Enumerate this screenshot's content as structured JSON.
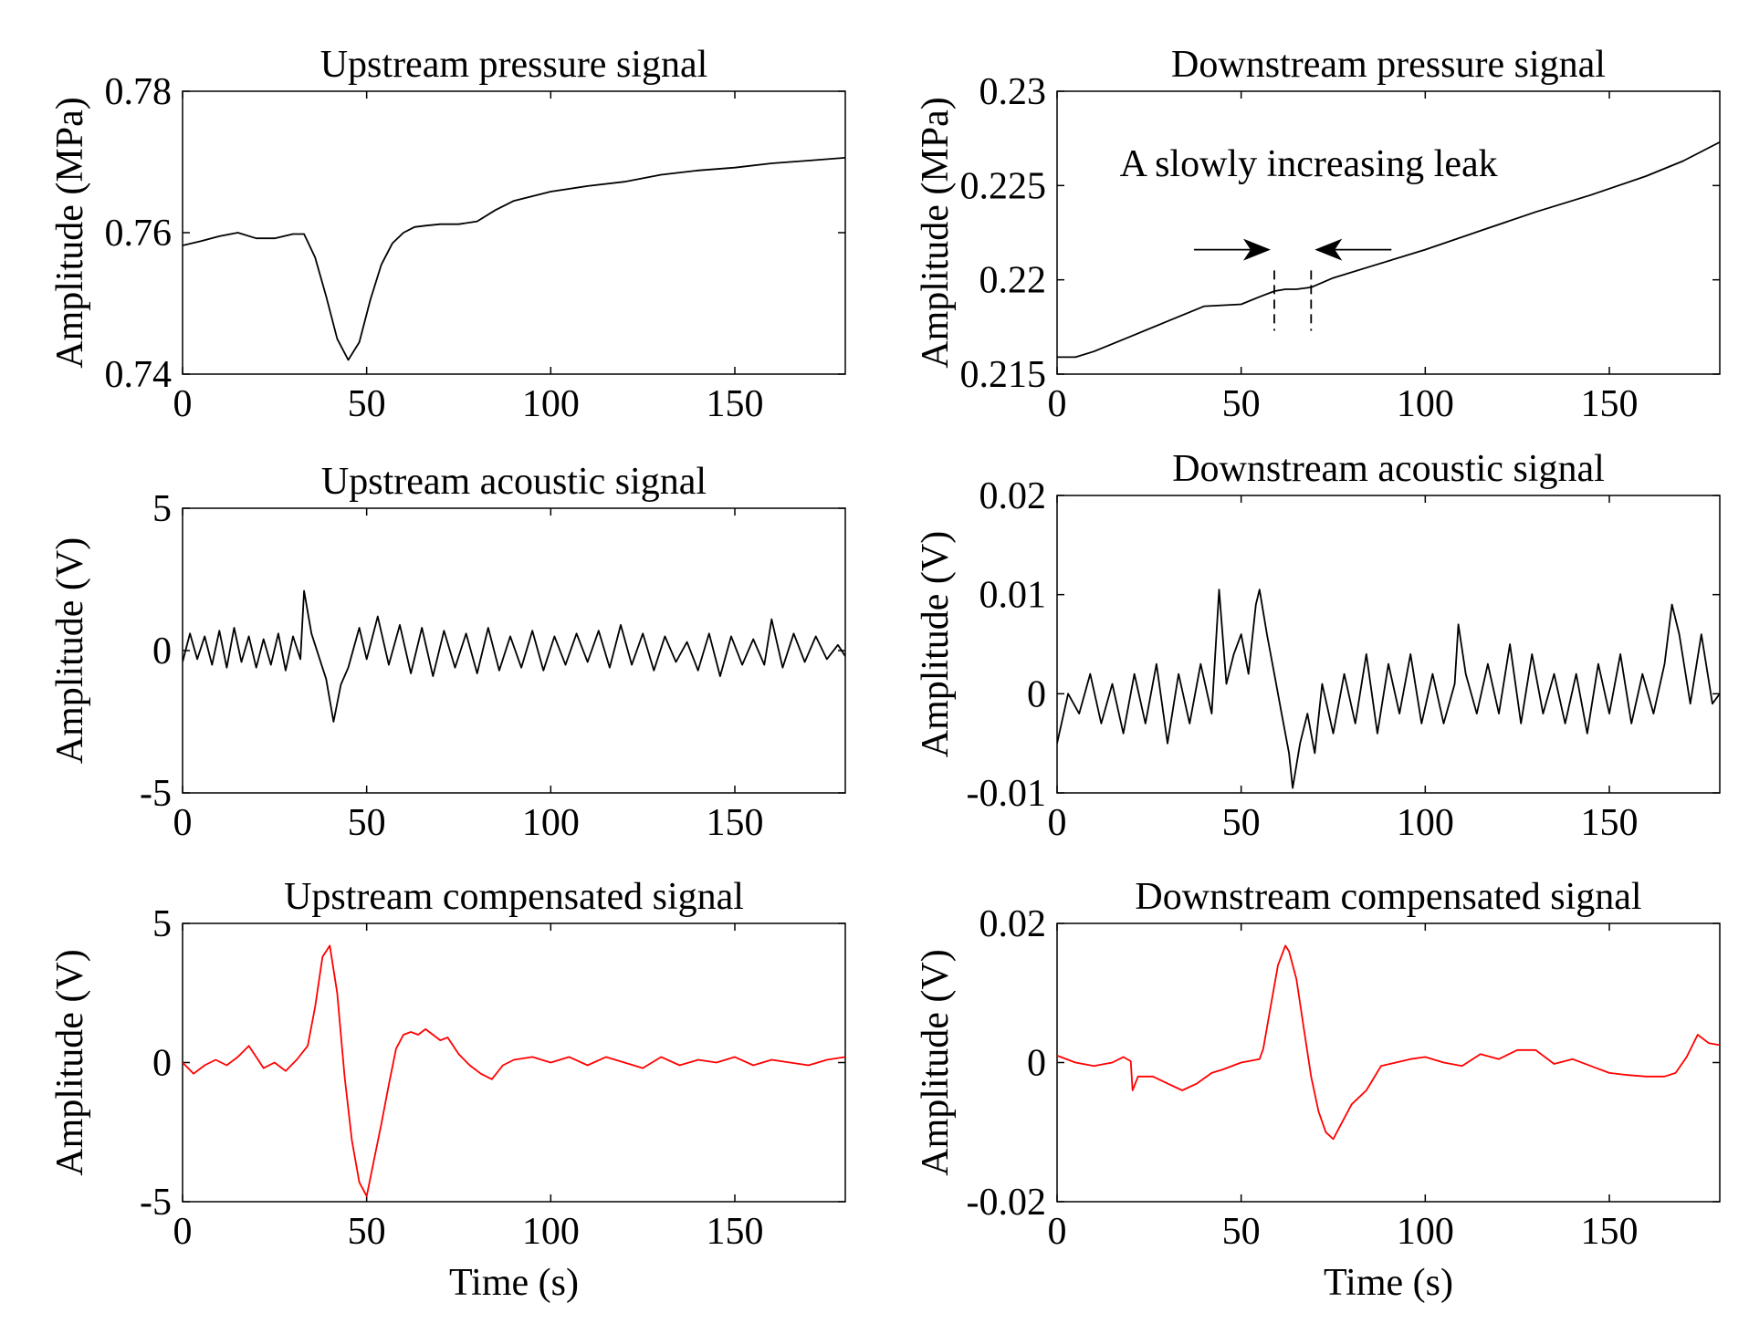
{
  "chart_data": [
    {
      "type": "line",
      "title": "Upstream pressure signal",
      "xlabel": "",
      "ylabel": "Amplitude (MPa)",
      "xlim": [
        0,
        180
      ],
      "ylim": [
        0.74,
        0.78
      ],
      "xticks": [
        0,
        50,
        100,
        150
      ],
      "yticks": [
        0.74,
        0.76,
        0.78
      ],
      "ytick_labels": [
        "0.74",
        "0.76",
        "0.78"
      ],
      "xtick_labels": [
        "0",
        "50",
        "100",
        "150"
      ],
      "color": "#000000",
      "x": [
        0,
        5,
        10,
        15,
        20,
        25,
        30,
        33,
        36,
        39,
        42,
        45,
        48,
        51,
        54,
        57,
        60,
        63,
        66,
        70,
        75,
        80,
        85,
        90,
        100,
        110,
        120,
        130,
        140,
        150,
        160,
        170,
        180
      ],
      "y": [
        0.7582,
        0.7588,
        0.7595,
        0.76,
        0.7592,
        0.7592,
        0.7598,
        0.7598,
        0.7565,
        0.751,
        0.745,
        0.742,
        0.7445,
        0.7505,
        0.7555,
        0.7585,
        0.76,
        0.7608,
        0.761,
        0.7612,
        0.7612,
        0.7616,
        0.7632,
        0.7645,
        0.7658,
        0.7666,
        0.7672,
        0.7682,
        0.7688,
        0.7692,
        0.7698,
        0.7702,
        0.7706
      ]
    },
    {
      "type": "line",
      "title": "Downstream pressure signal",
      "xlabel": "",
      "ylabel": "Amplitude (MPa)",
      "xlim": [
        0,
        180
      ],
      "ylim": [
        0.215,
        0.23
      ],
      "xticks": [
        0,
        50,
        100,
        150
      ],
      "yticks": [
        0.215,
        0.22,
        0.225,
        0.23
      ],
      "ytick_labels": [
        "0.215",
        "0.22",
        "0.225",
        "0.23"
      ],
      "xtick_labels": [
        "0",
        "50",
        "100",
        "150"
      ],
      "color": "#000000",
      "annotation": "A slowly increasing leak",
      "leak_bounds_x": [
        59,
        69
      ],
      "x": [
        0,
        5,
        10,
        20,
        30,
        40,
        50,
        55,
        59,
        62,
        65,
        69,
        75,
        85,
        100,
        115,
        130,
        145,
        160,
        170,
        180
      ],
      "y": [
        0.2159,
        0.2159,
        0.2162,
        0.217,
        0.2178,
        0.2186,
        0.2187,
        0.2191,
        0.2194,
        0.2195,
        0.2195,
        0.2196,
        0.2201,
        0.2207,
        0.2216,
        0.2226,
        0.2236,
        0.2245,
        0.2255,
        0.2263,
        0.2273
      ]
    },
    {
      "type": "line",
      "title": "Upstream acoustic signal",
      "xlabel": "",
      "ylabel": "Amplitude (V)",
      "xlim": [
        0,
        180
      ],
      "ylim": [
        -5,
        5
      ],
      "xticks": [
        0,
        50,
        100,
        150
      ],
      "yticks": [
        -5,
        0,
        5
      ],
      "ytick_labels": [
        "-5",
        "0",
        "5"
      ],
      "xtick_labels": [
        "0",
        "50",
        "100",
        "150"
      ],
      "color": "#000000",
      "x": [
        0,
        2,
        4,
        6,
        8,
        10,
        12,
        14,
        16,
        18,
        20,
        22,
        24,
        26,
        28,
        30,
        32,
        33,
        35,
        37,
        39,
        41,
        43,
        45,
        48,
        50,
        53,
        56,
        59,
        62,
        65,
        68,
        71,
        74,
        77,
        80,
        83,
        86,
        89,
        92,
        95,
        98,
        101,
        104,
        107,
        110,
        113,
        116,
        119,
        122,
        125,
        128,
        131,
        134,
        137,
        140,
        143,
        146,
        149,
        152,
        155,
        158,
        160,
        163,
        166,
        169,
        172,
        175,
        178,
        180
      ],
      "y": [
        -0.4,
        0.6,
        -0.3,
        0.5,
        -0.5,
        0.7,
        -0.6,
        0.8,
        -0.4,
        0.5,
        -0.6,
        0.4,
        -0.5,
        0.6,
        -0.7,
        0.5,
        -0.3,
        2.1,
        0.6,
        -0.2,
        -1.0,
        -2.5,
        -1.2,
        -0.6,
        0.8,
        -0.3,
        1.2,
        -0.5,
        0.9,
        -0.8,
        0.8,
        -0.9,
        0.7,
        -0.6,
        0.6,
        -0.8,
        0.8,
        -0.7,
        0.5,
        -0.6,
        0.7,
        -0.7,
        0.5,
        -0.5,
        0.6,
        -0.4,
        0.7,
        -0.6,
        0.9,
        -0.5,
        0.6,
        -0.7,
        0.5,
        -0.4,
        0.3,
        -0.7,
        0.6,
        -0.9,
        0.5,
        -0.5,
        0.4,
        -0.5,
        1.1,
        -0.6,
        0.6,
        -0.4,
        0.5,
        -0.3,
        0.2,
        -0.2
      ]
    },
    {
      "type": "line",
      "title": "Downstream acoustic signal",
      "xlabel": "",
      "ylabel": "Amplitude (V)",
      "xlim": [
        0,
        180
      ],
      "ylim": [
        -0.01,
        0.02
      ],
      "xticks": [
        0,
        50,
        100,
        150
      ],
      "yticks": [
        -0.01,
        0,
        0.01,
        0.02
      ],
      "ytick_labels": [
        "-0.01",
        "0",
        "0.01",
        "0.02"
      ],
      "xtick_labels": [
        "0",
        "50",
        "100",
        "150"
      ],
      "color": "#000000",
      "x": [
        0,
        3,
        6,
        9,
        12,
        15,
        18,
        21,
        24,
        27,
        30,
        33,
        36,
        39,
        42,
        44,
        46,
        48,
        50,
        52,
        54,
        55,
        57,
        59,
        61,
        63,
        64,
        66,
        68,
        70,
        72,
        75,
        78,
        81,
        84,
        87,
        90,
        93,
        96,
        99,
        102,
        105,
        108,
        109,
        111,
        114,
        117,
        120,
        123,
        126,
        129,
        132,
        135,
        138,
        141,
        144,
        147,
        150,
        153,
        156,
        159,
        162,
        165,
        167,
        169,
        172,
        175,
        178,
        180
      ],
      "y": [
        -0.005,
        0.0,
        -0.002,
        0.002,
        -0.003,
        0.001,
        -0.004,
        0.002,
        -0.003,
        0.003,
        -0.005,
        0.002,
        -0.003,
        0.003,
        -0.002,
        0.0105,
        0.001,
        0.004,
        0.006,
        0.002,
        0.009,
        0.0105,
        0.006,
        0.002,
        -0.002,
        -0.006,
        -0.0095,
        -0.005,
        -0.002,
        -0.006,
        0.001,
        -0.004,
        0.002,
        -0.003,
        0.004,
        -0.004,
        0.003,
        -0.002,
        0.004,
        -0.003,
        0.002,
        -0.003,
        0.001,
        0.007,
        0.002,
        -0.002,
        0.003,
        -0.002,
        0.005,
        -0.003,
        0.004,
        -0.002,
        0.002,
        -0.003,
        0.002,
        -0.004,
        0.003,
        -0.002,
        0.004,
        -0.003,
        0.002,
        -0.002,
        0.003,
        0.009,
        0.006,
        -0.001,
        0.006,
        -0.001,
        0.0
      ]
    },
    {
      "type": "line",
      "title": "Upstream compensated signal",
      "xlabel": "Time (s)",
      "ylabel": "Amplitude (V)",
      "xlim": [
        0,
        180
      ],
      "ylim": [
        -5,
        5
      ],
      "xticks": [
        0,
        50,
        100,
        150
      ],
      "yticks": [
        -5,
        0,
        5
      ],
      "ytick_labels": [
        "-5",
        "0",
        "5"
      ],
      "xtick_labels": [
        "0",
        "50",
        "100",
        "150"
      ],
      "color": "#ff0000",
      "x": [
        0,
        3,
        6,
        9,
        12,
        15,
        18,
        20,
        22,
        25,
        28,
        31,
        34,
        36,
        38,
        40,
        42,
        44,
        46,
        48,
        50,
        52,
        54,
        56,
        58,
        60,
        62,
        64,
        66,
        68,
        70,
        72,
        75,
        78,
        81,
        84,
        87,
        90,
        95,
        100,
        105,
        110,
        115,
        120,
        125,
        130,
        135,
        140,
        145,
        150,
        155,
        160,
        165,
        170,
        175,
        180
      ],
      "y": [
        0.0,
        -0.4,
        -0.1,
        0.1,
        -0.1,
        0.2,
        0.6,
        0.2,
        -0.2,
        0.0,
        -0.3,
        0.1,
        0.6,
        2.0,
        3.8,
        4.2,
        2.5,
        -0.5,
        -2.8,
        -4.3,
        -4.8,
        -3.5,
        -2.2,
        -0.8,
        0.5,
        1.0,
        1.1,
        1.0,
        1.2,
        1.0,
        0.8,
        0.9,
        0.3,
        -0.1,
        -0.4,
        -0.6,
        -0.1,
        0.1,
        0.2,
        0.0,
        0.2,
        -0.1,
        0.2,
        0.0,
        -0.2,
        0.2,
        -0.1,
        0.1,
        0.0,
        0.2,
        -0.1,
        0.1,
        0.0,
        -0.1,
        0.1,
        0.2
      ]
    },
    {
      "type": "line",
      "title": "Downstream compensated signal",
      "xlabel": "Time (s)",
      "ylabel": "Amplitude (V)",
      "xlim": [
        0,
        180
      ],
      "ylim": [
        -0.02,
        0.02
      ],
      "xticks": [
        0,
        50,
        100,
        150
      ],
      "yticks": [
        -0.02,
        0,
        0.02
      ],
      "ytick_labels": [
        "-0.02",
        "0",
        "0.02"
      ],
      "xtick_labels": [
        "0",
        "50",
        "100",
        "150"
      ],
      "color": "#ff0000",
      "x": [
        0,
        5,
        10,
        15,
        18,
        20,
        20.5,
        22,
        26,
        30,
        34,
        38,
        42,
        45,
        50,
        55,
        56,
        58,
        60,
        62,
        63,
        65,
        67,
        69,
        71,
        73,
        75,
        77,
        80,
        84,
        88,
        92,
        96,
        100,
        105,
        110,
        115,
        120,
        125,
        130,
        135,
        140,
        145,
        150,
        155,
        160,
        165,
        168,
        171,
        174,
        177,
        180
      ],
      "y": [
        0.001,
        0.0,
        -0.0005,
        0.0,
        0.0008,
        0.0002,
        -0.004,
        -0.002,
        -0.002,
        -0.003,
        -0.004,
        -0.003,
        -0.0015,
        -0.001,
        0.0,
        0.0005,
        0.002,
        0.008,
        0.014,
        0.0168,
        0.016,
        0.012,
        0.005,
        -0.002,
        -0.007,
        -0.01,
        -0.011,
        -0.009,
        -0.006,
        -0.004,
        -0.0005,
        0.0,
        0.0005,
        0.0008,
        0.0,
        -0.0005,
        0.0012,
        0.0005,
        0.0018,
        0.0018,
        -0.0002,
        0.0005,
        -0.0005,
        -0.0015,
        -0.0018,
        -0.002,
        -0.002,
        -0.0015,
        0.0008,
        0.004,
        0.0028,
        0.0025
      ]
    }
  ]
}
